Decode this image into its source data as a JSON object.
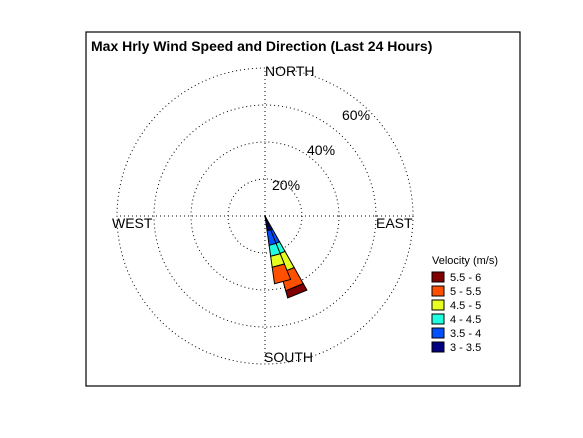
{
  "chart_data": {
    "type": "wind-rose",
    "title": "Max Hrly Wind Speed and Direction (Last 24 Hours)",
    "directions": {
      "north": "NORTH",
      "south": "SOUTH",
      "east": "EAST",
      "west": "WEST"
    },
    "rings": [
      {
        "value": 20,
        "label": "20%"
      },
      {
        "value": 40,
        "label": "40%"
      },
      {
        "value": 60,
        "label": "60%"
      }
    ],
    "rmax": 80,
    "legend_title": "Velocity (m/s)",
    "bins": [
      {
        "label": "3 - 3.5",
        "color": "#000080"
      },
      {
        "label": "3.5 - 4",
        "color": "#0050ff"
      },
      {
        "label": "4 - 4.5",
        "color": "#20ffe0"
      },
      {
        "label": "4.5 - 5",
        "color": "#e6ff20"
      },
      {
        "label": "5 - 5.5",
        "color": "#ff5000"
      },
      {
        "label": "5.5 - 6",
        "color": "#800000"
      }
    ],
    "sectors": [
      {
        "direction_deg": 157.5,
        "cumulative_percent": [
          8,
          16,
          22,
          32,
          42,
          46
        ]
      },
      {
        "direction_deg": 165,
        "cumulative_percent": [
          8,
          16,
          22,
          28,
          37,
          37
        ]
      }
    ]
  }
}
